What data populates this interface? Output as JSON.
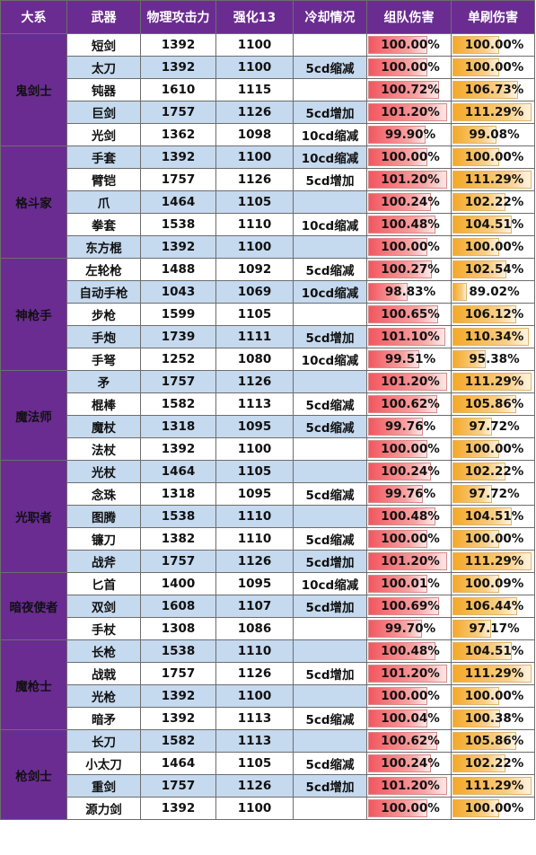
{
  "headers": [
    "大系",
    "武器",
    "物理攻击力",
    "强化13",
    "冷却情况",
    "组队伤害",
    "单刷伤害"
  ],
  "colors": {
    "header_bg": "#6a2c91",
    "row_shade": "#c5d9ef",
    "team_bar": "#f2575f",
    "solo_bar": "#f4a92a"
  },
  "groups": [
    {
      "name": "鬼剑士",
      "rows": [
        {
          "weapon": "短剑",
          "atk": "1392",
          "plus13": "1100",
          "cd": "",
          "team": "100.00%",
          "solo": "100.00%"
        },
        {
          "weapon": "太刀",
          "atk": "1392",
          "plus13": "1100",
          "cd": "5cd缩减",
          "team": "100.00%",
          "solo": "100.00%"
        },
        {
          "weapon": "钝器",
          "atk": "1610",
          "plus13": "1115",
          "cd": "",
          "team": "100.72%",
          "solo": "106.73%"
        },
        {
          "weapon": "巨剑",
          "atk": "1757",
          "plus13": "1126",
          "cd": "5cd增加",
          "team": "101.20%",
          "solo": "111.29%"
        },
        {
          "weapon": "光剑",
          "atk": "1362",
          "plus13": "1098",
          "cd": "10cd缩减",
          "team": "99.90%",
          "solo": "99.08%"
        }
      ]
    },
    {
      "name": "格斗家",
      "rows": [
        {
          "weapon": "手套",
          "atk": "1392",
          "plus13": "1100",
          "cd": "10cd缩减",
          "team": "100.00%",
          "solo": "100.00%"
        },
        {
          "weapon": "臂铠",
          "atk": "1757",
          "plus13": "1126",
          "cd": "5cd增加",
          "team": "101.20%",
          "solo": "111.29%"
        },
        {
          "weapon": "爪",
          "atk": "1464",
          "plus13": "1105",
          "cd": "",
          "team": "100.24%",
          "solo": "102.22%"
        },
        {
          "weapon": "拳套",
          "atk": "1538",
          "plus13": "1110",
          "cd": "10cd缩减",
          "team": "100.48%",
          "solo": "104.51%"
        },
        {
          "weapon": "东方棍",
          "atk": "1392",
          "plus13": "1100",
          "cd": "",
          "team": "100.00%",
          "solo": "100.00%"
        }
      ]
    },
    {
      "name": "神枪手",
      "rows": [
        {
          "weapon": "左轮枪",
          "atk": "1488",
          "plus13": "1092",
          "cd": "5cd缩减",
          "team": "100.27%",
          "solo": "102.54%"
        },
        {
          "weapon": "自动手枪",
          "atk": "1043",
          "plus13": "1069",
          "cd": "10cd缩减",
          "team": "98.83%",
          "solo": "89.02%"
        },
        {
          "weapon": "步枪",
          "atk": "1599",
          "plus13": "1105",
          "cd": "",
          "team": "100.65%",
          "solo": "106.12%"
        },
        {
          "weapon": "手炮",
          "atk": "1739",
          "plus13": "1111",
          "cd": "5cd增加",
          "team": "101.10%",
          "solo": "110.34%"
        },
        {
          "weapon": "手弩",
          "atk": "1252",
          "plus13": "1080",
          "cd": "10cd缩减",
          "team": "99.51%",
          "solo": "95.38%"
        }
      ]
    },
    {
      "name": "魔法师",
      "rows": [
        {
          "weapon": "矛",
          "atk": "1757",
          "plus13": "1126",
          "cd": "",
          "team": "101.20%",
          "solo": "111.29%"
        },
        {
          "weapon": "棍棒",
          "atk": "1582",
          "plus13": "1113",
          "cd": "5cd缩减",
          "team": "100.62%",
          "solo": "105.86%"
        },
        {
          "weapon": "魔杖",
          "atk": "1318",
          "plus13": "1095",
          "cd": "5cd缩减",
          "team": "99.76%",
          "solo": "97.72%"
        },
        {
          "weapon": "法杖",
          "atk": "1392",
          "plus13": "1100",
          "cd": "",
          "team": "100.00%",
          "solo": "100.00%"
        }
      ]
    },
    {
      "name": "光职者",
      "rows": [
        {
          "weapon": "光杖",
          "atk": "1464",
          "plus13": "1105",
          "cd": "",
          "team": "100.24%",
          "solo": "102.22%"
        },
        {
          "weapon": "念珠",
          "atk": "1318",
          "plus13": "1095",
          "cd": "5cd缩减",
          "team": "99.76%",
          "solo": "97.72%"
        },
        {
          "weapon": "图腾",
          "atk": "1538",
          "plus13": "1110",
          "cd": "",
          "team": "100.48%",
          "solo": "104.51%"
        },
        {
          "weapon": "镰刀",
          "atk": "1382",
          "plus13": "1110",
          "cd": "5cd缩减",
          "team": "100.00%",
          "solo": "100.00%"
        },
        {
          "weapon": "战斧",
          "atk": "1757",
          "plus13": "1126",
          "cd": "5cd增加",
          "team": "101.20%",
          "solo": "111.29%"
        }
      ]
    },
    {
      "name": "暗夜使者",
      "rows": [
        {
          "weapon": "匕首",
          "atk": "1400",
          "plus13": "1095",
          "cd": "10cd缩减",
          "team": "100.01%",
          "solo": "100.09%"
        },
        {
          "weapon": "双剑",
          "atk": "1608",
          "plus13": "1107",
          "cd": "5cd增加",
          "team": "100.69%",
          "solo": "106.44%"
        },
        {
          "weapon": "手杖",
          "atk": "1308",
          "plus13": "1086",
          "cd": "",
          "team": "99.70%",
          "solo": "97.17%"
        }
      ]
    },
    {
      "name": "魔枪士",
      "rows": [
        {
          "weapon": "长枪",
          "atk": "1538",
          "plus13": "1110",
          "cd": "",
          "team": "100.48%",
          "solo": "104.51%"
        },
        {
          "weapon": "战戟",
          "atk": "1757",
          "plus13": "1126",
          "cd": "5cd增加",
          "team": "101.20%",
          "solo": "111.29%"
        },
        {
          "weapon": "光枪",
          "atk": "1392",
          "plus13": "1100",
          "cd": "",
          "team": "100.00%",
          "solo": "100.00%"
        },
        {
          "weapon": "暗矛",
          "atk": "1392",
          "plus13": "1113",
          "cd": "5cd缩减",
          "team": "100.04%",
          "solo": "100.38%"
        }
      ]
    },
    {
      "name": "枪剑士",
      "rows": [
        {
          "weapon": "长刀",
          "atk": "1582",
          "plus13": "1113",
          "cd": "",
          "team": "100.62%",
          "solo": "105.86%"
        },
        {
          "weapon": "小太刀",
          "atk": "1464",
          "plus13": "1105",
          "cd": "5cd缩减",
          "team": "100.24%",
          "solo": "102.22%"
        },
        {
          "weapon": "重剑",
          "atk": "1757",
          "plus13": "1126",
          "cd": "5cd增加",
          "team": "101.20%",
          "solo": "111.29%"
        },
        {
          "weapon": "源力剑",
          "atk": "1392",
          "plus13": "1100",
          "cd": "",
          "team": "100.00%",
          "solo": "100.00%"
        }
      ]
    }
  ]
}
